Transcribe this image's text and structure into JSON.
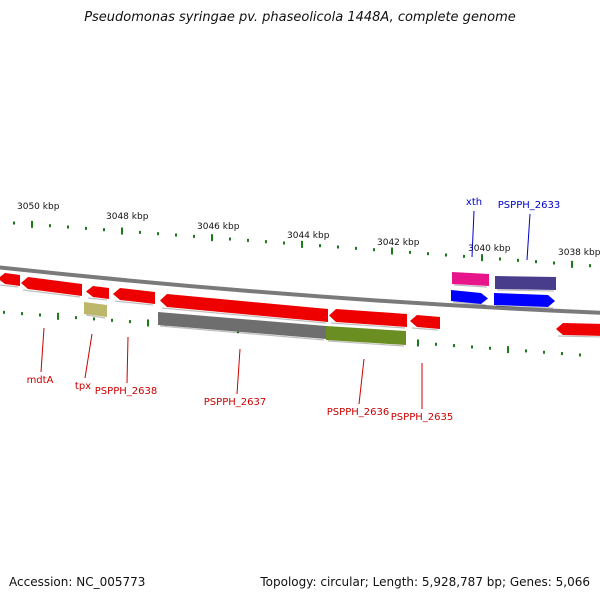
{
  "title": "Pseudomonas syringae pv. phaseolicola 1448A, complete genome",
  "footer": {
    "accession": "Accession: NC_005773",
    "summary": "Topology: circular; Length: 5,928,787 bp; Genes: 5,066"
  },
  "scale": {
    "unit": "kbp",
    "labels": [
      "3050 kbp",
      "3048 kbp",
      "3046 kbp",
      "3044 kbp",
      "3042 kbp",
      "3040 kbp",
      "3038 kbp"
    ]
  },
  "colors": {
    "backbone": "#888888",
    "tick": "#1a7a1a",
    "gene_red": "#ee0000",
    "gene_grey": "#6e6e6e",
    "gene_olive": "#6b8e23",
    "gene_khaki": "#bdb76b",
    "gene_magenta": "#e8158a",
    "gene_blue": "#0000ff",
    "gene_slate": "#483d8b",
    "label_red": "#cc0000",
    "label_blue": "#0000cc"
  },
  "genes": [
    {
      "label": "mdtA"
    },
    {
      "label": "tpx"
    },
    {
      "label": "PSPPH_2638"
    },
    {
      "label": "PSPPH_2637"
    },
    {
      "label": "PSPPH_2636"
    },
    {
      "label": "PSPPH_2635"
    },
    {
      "label": "xth"
    },
    {
      "label": "PSPPH_2633"
    }
  ]
}
